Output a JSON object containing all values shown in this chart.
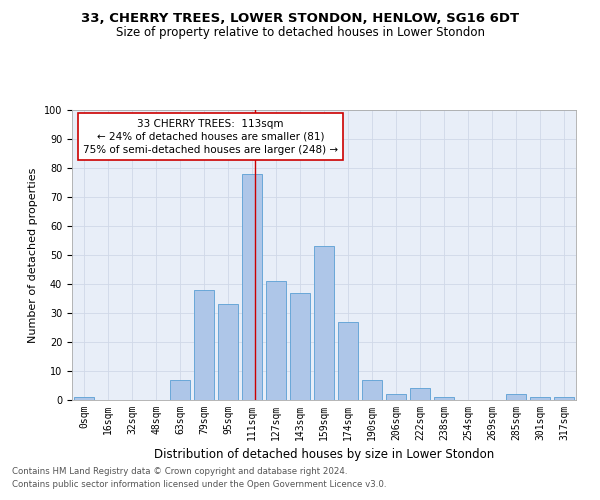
{
  "title": "33, CHERRY TREES, LOWER STONDON, HENLOW, SG16 6DT",
  "subtitle": "Size of property relative to detached houses in Lower Stondon",
  "xlabel": "Distribution of detached houses by size in Lower Stondon",
  "ylabel": "Number of detached properties",
  "bar_labels": [
    "0sqm",
    "16sqm",
    "32sqm",
    "48sqm",
    "63sqm",
    "79sqm",
    "95sqm",
    "111sqm",
    "127sqm",
    "143sqm",
    "159sqm",
    "174sqm",
    "190sqm",
    "206sqm",
    "222sqm",
    "238sqm",
    "254sqm",
    "269sqm",
    "285sqm",
    "301sqm",
    "317sqm"
  ],
  "bar_values": [
    1,
    0,
    0,
    0,
    7,
    38,
    33,
    78,
    41,
    37,
    53,
    27,
    7,
    2,
    4,
    1,
    0,
    0,
    2,
    1,
    1
  ],
  "bar_color": "#aec6e8",
  "bar_edgecolor": "#5a9fd4",
  "vline_color": "#cc0000",
  "vline_x": 7.13,
  "annotation_text": "33 CHERRY TREES:  113sqm\n← 24% of detached houses are smaller (81)\n75% of semi-detached houses are larger (248) →",
  "annotation_box_color": "#ffffff",
  "annotation_box_edgecolor": "#cc0000",
  "ylim": [
    0,
    100
  ],
  "yticks": [
    0,
    10,
    20,
    30,
    40,
    50,
    60,
    70,
    80,
    90,
    100
  ],
  "grid_color": "#d0d8e8",
  "bg_color": "#e8eef8",
  "footer_line1": "Contains HM Land Registry data © Crown copyright and database right 2024.",
  "footer_line2": "Contains public sector information licensed under the Open Government Licence v3.0.",
  "title_fontsize": 9.5,
  "subtitle_fontsize": 8.5,
  "xlabel_fontsize": 8.5,
  "ylabel_fontsize": 8,
  "tick_fontsize": 7,
  "annotation_fontsize": 7.5,
  "footer_fontsize": 6.2
}
